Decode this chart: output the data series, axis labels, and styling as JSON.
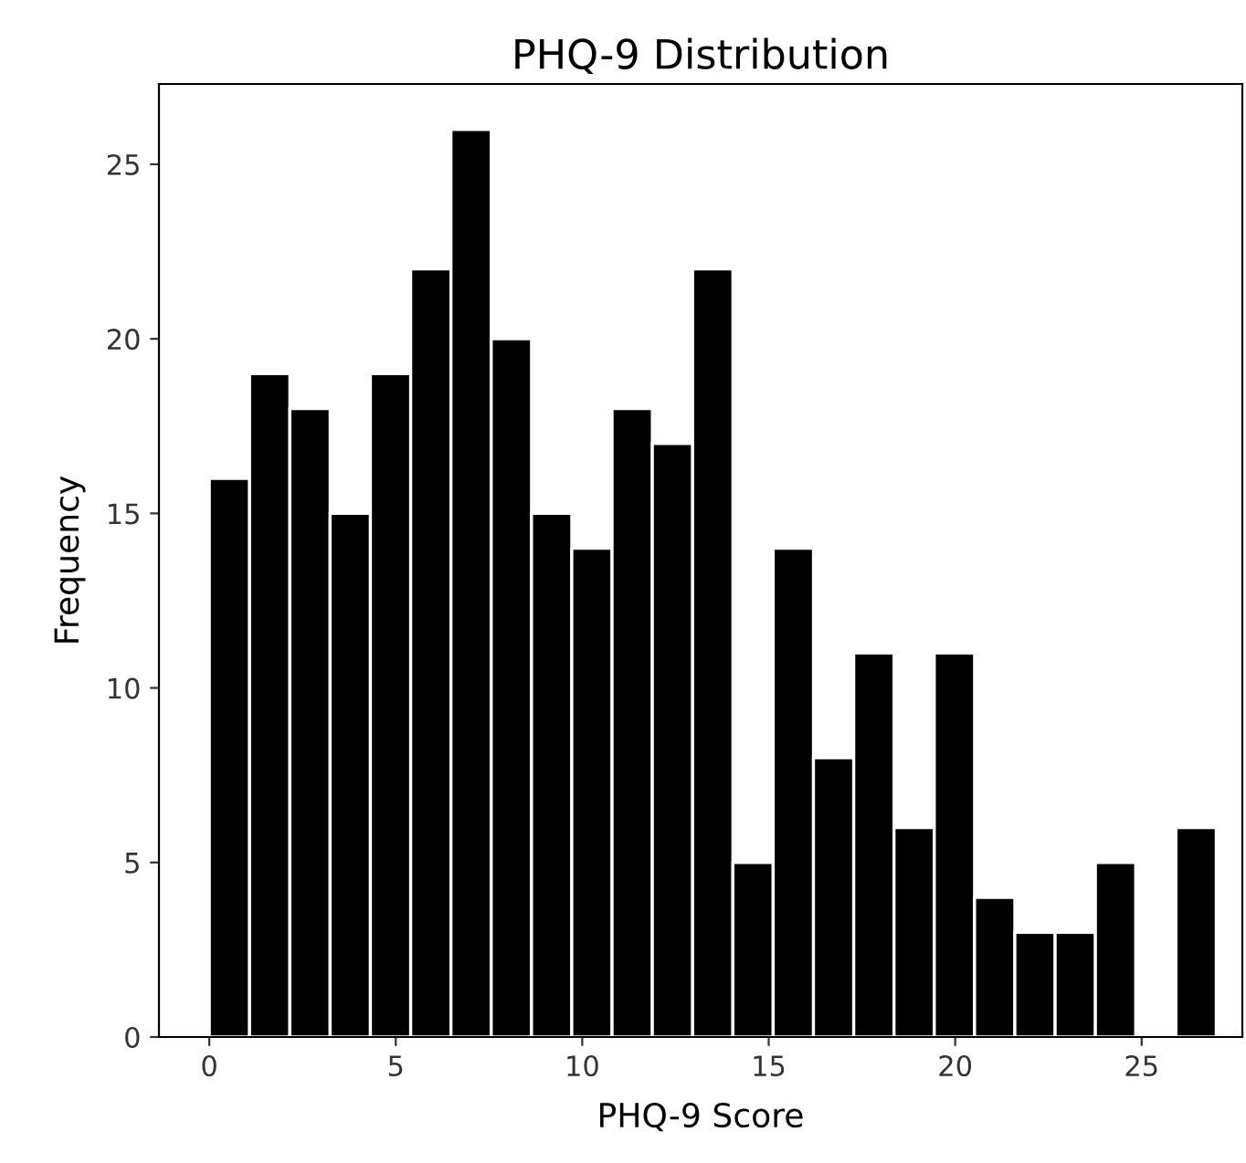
{
  "chart_data": {
    "type": "histogram",
    "title": "PHQ-9 Distribution",
    "xlabel": "PHQ-9 Score",
    "ylabel": "Frequency",
    "bins": [
      0,
      1.08,
      2.16,
      3.24,
      4.32,
      5.4,
      6.48,
      7.56,
      8.64,
      9.72,
      10.8,
      11.88,
      12.96,
      14.04,
      15.12,
      16.2,
      17.28,
      18.36,
      19.44,
      20.52,
      21.6,
      22.68,
      23.76,
      24.84,
      25.92,
      27
    ],
    "values": [
      16,
      19,
      18,
      15,
      19,
      22,
      26,
      20,
      15,
      14,
      18,
      17,
      22,
      5,
      14,
      8,
      11,
      6,
      11,
      4,
      3,
      3,
      5,
      0,
      6
    ],
    "color": "#000000",
    "xlim": [
      -1.35,
      27.7
    ],
    "ylim": [
      0,
      27.3
    ],
    "xticks": [
      0,
      5,
      10,
      15,
      20,
      25
    ],
    "yticks": [
      0,
      5,
      10,
      15,
      20,
      25
    ],
    "grid": false
  }
}
